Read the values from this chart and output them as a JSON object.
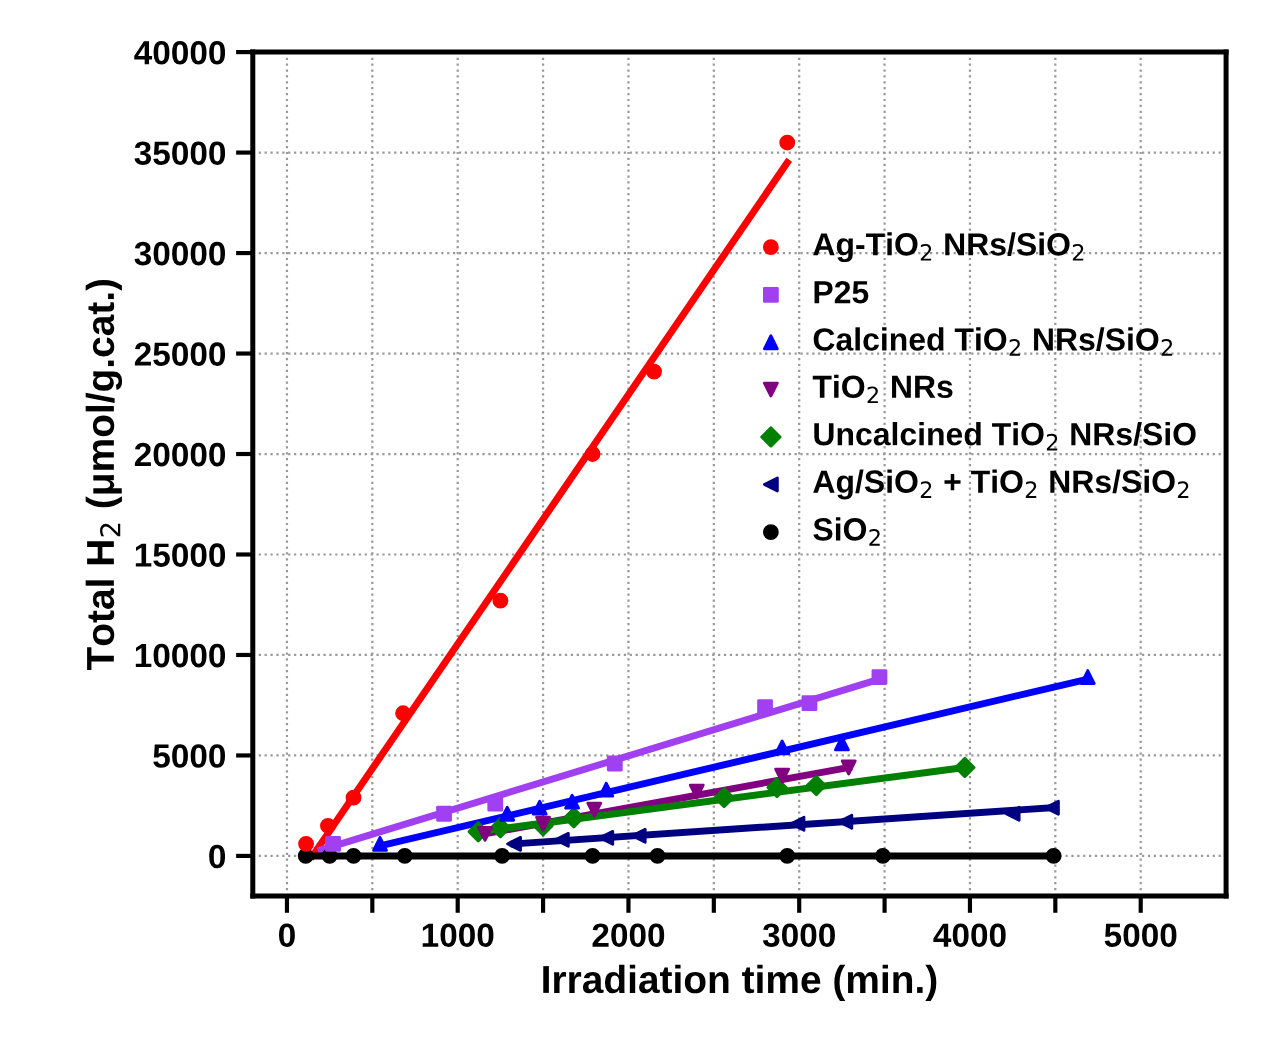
{
  "chart_data": {
    "type": "scatter",
    "xlabel": "Irradiation time (min.)",
    "ylabel": "Total H$_{2}$ (μmol/g.cat.)",
    "xlim": [
      -200,
      5500
    ],
    "ylim": [
      -2000,
      40000
    ],
    "xticks": [
      0,
      {
        "value": 500,
        "label": null
      },
      1000,
      {
        "value": 1500,
        "label": null
      },
      2000,
      {
        "value": 2500,
        "label": null
      },
      3000,
      {
        "value": 3500,
        "label": null
      },
      4000,
      {
        "value": 4500,
        "label": null
      },
      5000
    ],
    "yticks": [
      0,
      5000,
      10000,
      15000,
      20000,
      25000,
      30000,
      35000,
      40000
    ],
    "grid": true,
    "legend": "right",
    "series": [
      {
        "name": "Ag-TiO$_{2}$ NRs/SiO$_{2}$",
        "color": "#ff0000",
        "marker": "circle",
        "x": [
          112,
          240,
          390,
          680,
          1250,
          1790,
          2150,
          2930
        ],
        "values": [
          600,
          1500,
          2900,
          7100,
          12700,
          20000,
          24100,
          35500
        ]
      },
      {
        "name": "P25",
        "color": "#a040f0",
        "marker": "square",
        "x": [
          270,
          920,
          1220,
          1920,
          2800,
          3060,
          3470
        ],
        "values": [
          600,
          2100,
          2600,
          4600,
          7400,
          7600,
          8900
        ]
      },
      {
        "name": "Calcined TiO$_{2}$ NRs/SiO$_{2}$",
        "color": "#0000ff",
        "marker": "triangle",
        "x": [
          545,
          1290,
          1480,
          1670,
          1870,
          2900,
          3250,
          4690
        ],
        "values": [
          600,
          2100,
          2400,
          2700,
          3300,
          5400,
          5600,
          8900
        ]
      },
      {
        "name": "TiO$_{2}$ NRs",
        "color": "#800080",
        "marker": "triangle_down",
        "x": [
          1160,
          1500,
          1800,
          2400,
          2900,
          3290
        ],
        "values": [
          1100,
          1600,
          2300,
          3200,
          4000,
          4400
        ]
      },
      {
        "name": "Uncalcined TiO$_{2}$ NRs/SiO",
        "color": "#008000",
        "marker": "diamond",
        "x": [
          1120,
          1250,
          1500,
          1680,
          2560,
          2870,
          3100,
          3970
        ],
        "values": [
          1200,
          1400,
          1500,
          1900,
          2900,
          3400,
          3500,
          4400
        ]
      },
      {
        "name": "Ag/SiO$_{2}$ + TiO$_{2}$ NRs/SiO$_{2}$",
        "color": "#000080",
        "marker": "triangle_left",
        "x": [
          1330,
          1610,
          1870,
          2060,
          2990,
          3270,
          4250,
          4480
        ],
        "values": [
          600,
          800,
          900,
          1000,
          1600,
          1700,
          2100,
          2400
        ]
      },
      {
        "name": "SiO$_{2}$",
        "color": "#000000",
        "marker": "circle",
        "x": [
          110,
          250,
          390,
          690,
          1260,
          1790,
          2170,
          2930,
          3490,
          4490
        ],
        "values": [
          0,
          0,
          0,
          0,
          0,
          0,
          0,
          0,
          0,
          0
        ]
      },
      {
        "type": "line",
        "color": "#ff0000",
        "x": [
          150,
          2930
        ],
        "values": [
          0,
          34500
        ]
      },
      {
        "type": "line",
        "color": "#a040f0",
        "x": [
          200,
          3470
        ],
        "values": [
          300,
          8800
        ]
      },
      {
        "type": "line",
        "color": "#0000ff",
        "x": [
          545,
          4690
        ],
        "values": [
          500,
          8800
        ]
      },
      {
        "type": "line",
        "color": "#800080",
        "x": [
          1160,
          3290
        ],
        "values": [
          1100,
          4400
        ]
      },
      {
        "type": "line",
        "color": "#008000",
        "x": [
          1120,
          3970
        ],
        "values": [
          1200,
          4400
        ]
      },
      {
        "type": "line",
        "color": "#000080",
        "x": [
          1330,
          4480
        ],
        "values": [
          600,
          2400
        ]
      },
      {
        "type": "line",
        "color": "#000000",
        "x": [
          110,
          4490
        ],
        "values": [
          0,
          0
        ]
      }
    ]
  }
}
